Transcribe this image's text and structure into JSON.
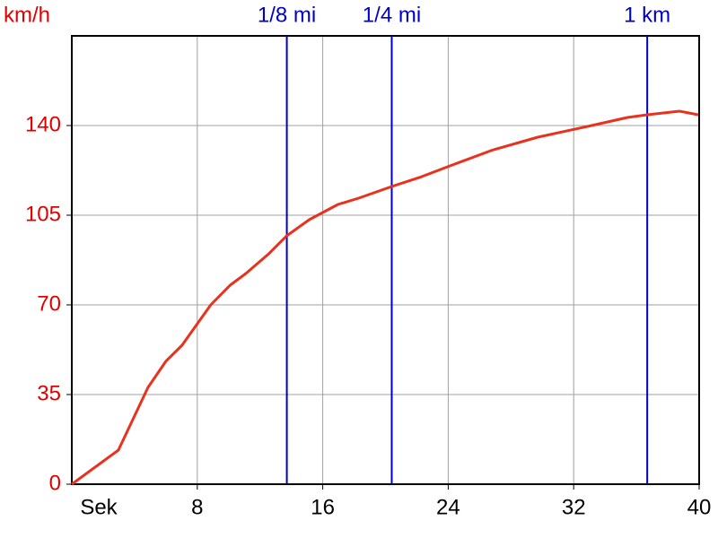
{
  "chart_data": {
    "type": "line",
    "ylabel": "km/h",
    "xlabel": "Sek",
    "xlim": [
      0,
      40
    ],
    "xticks": [
      8,
      16,
      24,
      32,
      40
    ],
    "ylim": [
      0,
      175
    ],
    "yticks": [
      0,
      35,
      70,
      105,
      140
    ],
    "grid": true,
    "x": [
      0,
      2.97,
      4.86,
      6,
      7.03,
      8.86,
      10.1,
      11.1,
      12.57,
      13.71,
      15.14,
      16.97,
      18.29,
      20.4,
      22.29,
      24,
      26.86,
      29.71,
      33.14,
      35.43,
      36.69,
      38.74,
      39.94
    ],
    "series": [
      {
        "color": "#e8321e",
        "values": [
          0,
          13.3,
          37.8,
          48,
          54.25,
          70,
          77.7,
          82.25,
          90,
          97,
          103.25,
          109.2,
          111.65,
          116.2,
          120,
          124,
          130.5,
          135.45,
          140,
          143.15,
          144.2,
          145.6,
          144.2
        ]
      }
    ],
    "markers": [
      {
        "label": "1/8 mi",
        "x": 13.71
      },
      {
        "label": "1/4 mi",
        "x": 20.4
      },
      {
        "label": "1 km",
        "x": 36.69
      }
    ],
    "marker_color": "#0000c8",
    "ytick_color": "#e00000"
  }
}
